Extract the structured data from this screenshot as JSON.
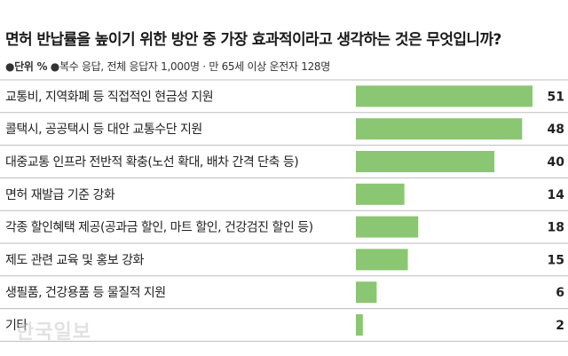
{
  "title": "면허 반납률을 높이기 위한 방안 중 가장 효과적이라고 생각하는 것은 무엇입니까?",
  "unit_label": "●단위 %",
  "note": "●복수 응답, 전체 응답자 1,000명 · 만 65세 이상 운전자 128명",
  "watermark": "한국일보",
  "colors": {
    "bar": "#8bc672",
    "divider": "#bdbdbd",
    "text": "#222222"
  },
  "chart_data": {
    "type": "bar",
    "orientation": "horizontal",
    "title": "면허 반납률을 높이기 위한 방안 중 가장 효과적이라고 생각하는 것은 무엇입니까?",
    "categories": [
      "교통비, 지역화폐 등 직접적인 현금성 지원",
      "콜택시, 공공택시 등 대안 교통수단 지원",
      "대중교통 인프라 전반적 확충(노선 확대, 배차 간격 단축 등)",
      "면허 재발급 기준 강화",
      "각종 할인혜택 제공(공과금 할인, 마트 할인, 건강검진 할인 등)",
      "제도 관련 교육 및 홍보 강화",
      "생필품, 건강용품 등 물질적 지원",
      "기타"
    ],
    "values": [
      51,
      48,
      40,
      14,
      18,
      15,
      6,
      2
    ],
    "unit": "%",
    "xlim": [
      0,
      51
    ],
    "grid": false,
    "legend": "none"
  }
}
